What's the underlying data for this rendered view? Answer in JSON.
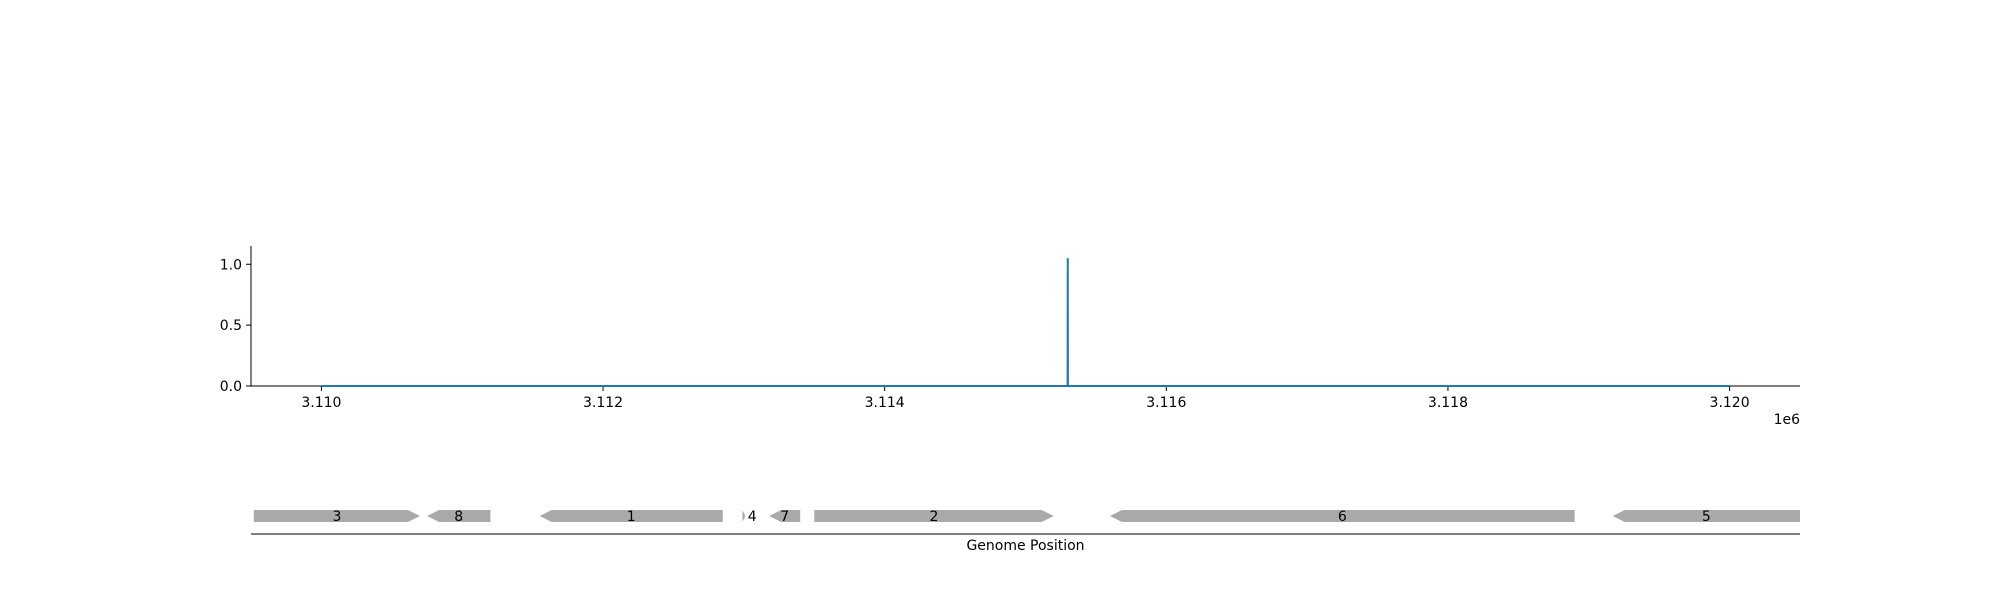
{
  "chart_data": [
    {
      "type": "line",
      "x": [
        3110000,
        3111000,
        3112000,
        3113000,
        3114000,
        3115000,
        3115299,
        3115300,
        3115301,
        3116000,
        3117000,
        3118000,
        3119000,
        3120000
      ],
      "y": [
        0,
        0,
        0,
        0,
        0,
        0,
        0,
        1.05,
        0,
        0,
        0,
        0,
        0,
        0
      ],
      "xlim": [
        3109500,
        3120500
      ],
      "ylim": [
        0,
        1.15
      ],
      "xticks": [
        3110000,
        3112000,
        3114000,
        3116000,
        3118000,
        3120000
      ],
      "xtick_labels": [
        "3.110",
        "3.112",
        "3.114",
        "3.116",
        "3.118",
        "3.120"
      ],
      "xaxis_offset_label": "1e6",
      "yticks": [
        0,
        0.5,
        1.0
      ],
      "ytick_labels": [
        "0.0",
        "0.5",
        "1.0"
      ],
      "grid": false,
      "line_color": "#1f77b4"
    },
    {
      "type": "gene-map",
      "xlabel": "Genome Position",
      "genes": [
        {
          "label": "3",
          "start": 3109520,
          "end": 3110700,
          "strand": "+"
        },
        {
          "label": "8",
          "start": 3110750,
          "end": 3111200,
          "strand": "-"
        },
        {
          "label": "1",
          "start": 3111550,
          "end": 3112850,
          "strand": "-"
        },
        {
          "label": "4",
          "start": 3112990,
          "end": 3113010,
          "strand": "+"
        },
        {
          "label": "7",
          "start": 3113180,
          "end": 3113400,
          "strand": "-"
        },
        {
          "label": "2",
          "start": 3113500,
          "end": 3115200,
          "strand": "+"
        },
        {
          "label": "6",
          "start": 3115600,
          "end": 3118900,
          "strand": "-"
        },
        {
          "label": "5",
          "start": 3119170,
          "end": 3120500,
          "strand": "-"
        }
      ],
      "gene_color": "#a9a9a9"
    }
  ]
}
